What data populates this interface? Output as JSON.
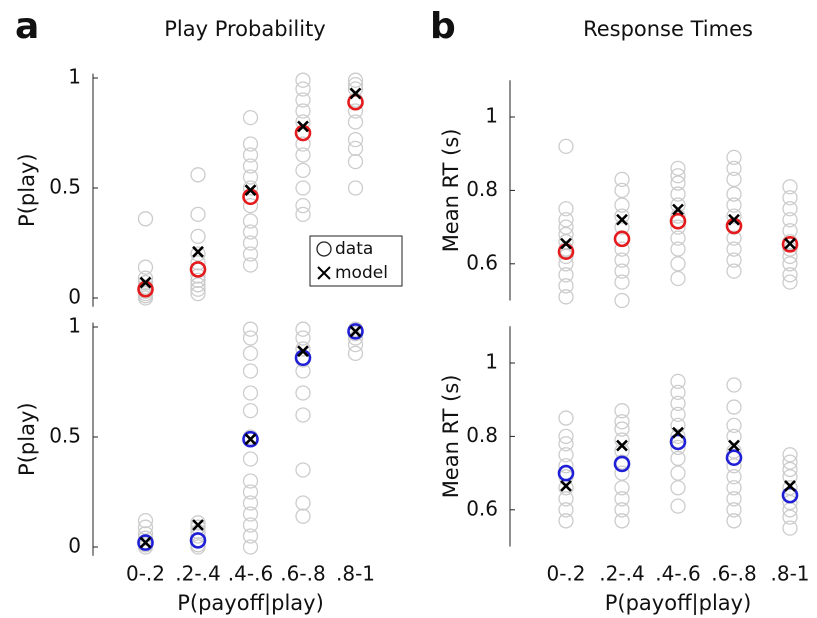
{
  "chart_data": [
    {
      "type": "scatter",
      "panel_label": "a",
      "title": "Play Probability",
      "ylabel": "P(play)",
      "categories": [
        null,
        null,
        null,
        null,
        null
      ],
      "ylim": [
        -0.04,
        1.02
      ],
      "yticks": [
        0,
        0.5,
        1
      ],
      "legend": "right",
      "series": [
        {
          "name": "data",
          "color": "#cccccc",
          "values": [
            [
              0,
              0.01,
              0.02,
              0.03,
              0.05,
              0.07,
              0.09,
              0.14,
              0.36
            ],
            [
              0.02,
              0.04,
              0.06,
              0.08,
              0.1,
              0.13,
              0.16,
              0.2,
              0.28,
              0.38,
              0.56
            ],
            [
              0.15,
              0.2,
              0.25,
              0.3,
              0.35,
              0.42,
              0.5,
              0.55,
              0.6,
              0.65,
              0.7,
              0.82
            ],
            [
              0.38,
              0.42,
              0.5,
              0.58,
              0.65,
              0.7,
              0.75,
              0.8,
              0.85,
              0.9,
              0.95,
              0.99
            ],
            [
              0.5,
              0.62,
              0.68,
              0.72,
              0.8,
              0.85,
              0.9,
              0.95,
              0.97,
              0.99
            ]
          ]
        },
        {
          "color": "#e41a1c",
          "values": [
            0.04,
            0.13,
            0.46,
            0.75,
            0.89
          ]
        },
        {
          "name": "model",
          "color": "#000000",
          "values": [
            0.07,
            0.21,
            0.49,
            0.78,
            0.93
          ]
        }
      ]
    },
    {
      "type": "scatter",
      "panel_label": "b",
      "title": "Response Times",
      "ylabel": "Mean RT (s)",
      "categories": [
        null,
        null,
        null,
        null,
        null
      ],
      "ylim": [
        0.5,
        1.1
      ],
      "yticks": [
        0.6,
        0.8,
        1
      ],
      "series": [
        {
          "color": "#cccccc",
          "values": [
            [
              0.51,
              0.54,
              0.57,
              0.6,
              0.62,
              0.64,
              0.66,
              0.68,
              0.7,
              0.72,
              0.75,
              0.92
            ],
            [
              0.5,
              0.55,
              0.58,
              0.61,
              0.64,
              0.67,
              0.7,
              0.73,
              0.76,
              0.8,
              0.83
            ],
            [
              0.56,
              0.6,
              0.64,
              0.67,
              0.7,
              0.73,
              0.76,
              0.79,
              0.82,
              0.84,
              0.86
            ],
            [
              0.58,
              0.61,
              0.64,
              0.67,
              0.7,
              0.73,
              0.76,
              0.79,
              0.83,
              0.86,
              0.89
            ],
            [
              0.55,
              0.57,
              0.6,
              0.62,
              0.64,
              0.66,
              0.69,
              0.72,
              0.75,
              0.78,
              0.81
            ]
          ]
        },
        {
          "color": "#e41a1c",
          "values": [
            0.633,
            0.668,
            0.716,
            0.703,
            0.653
          ]
        },
        {
          "color": "#000000",
          "values": [
            0.655,
            0.72,
            0.748,
            0.72,
            0.655
          ]
        }
      ]
    },
    {
      "type": "scatter",
      "ylabel": "P(play)",
      "xlabel": "P(payoff|play)",
      "categories": [
        "0-.2",
        ".2-.4",
        ".4-.6",
        ".6-.8",
        ".8-1"
      ],
      "ylim": [
        -0.04,
        1.02
      ],
      "yticks": [
        0,
        0.5,
        1
      ],
      "series": [
        {
          "color": "#cccccc",
          "values": [
            [
              0,
              0.01,
              0.02,
              0.04,
              0.06,
              0.09,
              0.12
            ],
            [
              0,
              0.01,
              0.03,
              0.05,
              0.07,
              0.09,
              0.11
            ],
            [
              0,
              0.05,
              0.1,
              0.15,
              0.2,
              0.25,
              0.3,
              0.4,
              0.5,
              0.62,
              0.7,
              0.8,
              0.88,
              0.95,
              0.99
            ],
            [
              0.14,
              0.2,
              0.35,
              0.6,
              0.7,
              0.8,
              0.85,
              0.9,
              0.95,
              0.99
            ],
            [
              0.88,
              0.92,
              0.95,
              0.97,
              0.99
            ]
          ]
        },
        {
          "color": "#1f1fd6",
          "values": [
            0.02,
            0.03,
            0.49,
            0.86,
            0.98
          ]
        },
        {
          "color": "#000000",
          "values": [
            0.02,
            0.1,
            0.49,
            0.89,
            0.98
          ]
        }
      ]
    },
    {
      "type": "scatter",
      "ylabel": "Mean RT (s)",
      "xlabel": "P(payoff|play)",
      "categories": [
        "0-.2",
        ".2-.4",
        ".4-.6",
        ".6-.8",
        ".8-1"
      ],
      "ylim": [
        0.5,
        1.1
      ],
      "yticks": [
        0.6,
        0.8,
        1
      ],
      "series": [
        {
          "color": "#cccccc",
          "values": [
            [
              0.57,
              0.6,
              0.63,
              0.66,
              0.69,
              0.72,
              0.75,
              0.78,
              0.8,
              0.85
            ],
            [
              0.57,
              0.6,
              0.63,
              0.66,
              0.7,
              0.73,
              0.76,
              0.79,
              0.82,
              0.84,
              0.87
            ],
            [
              0.61,
              0.66,
              0.7,
              0.74,
              0.77,
              0.8,
              0.83,
              0.86,
              0.89,
              0.92,
              0.95
            ],
            [
              0.57,
              0.6,
              0.63,
              0.66,
              0.69,
              0.72,
              0.76,
              0.8,
              0.83,
              0.88,
              0.94
            ],
            [
              0.55,
              0.58,
              0.6,
              0.62,
              0.64,
              0.66,
              0.69,
              0.71,
              0.73,
              0.75
            ]
          ]
        },
        {
          "color": "#1f1fd6",
          "values": [
            0.7,
            0.725,
            0.785,
            0.742,
            0.64
          ]
        },
        {
          "color": "#000000",
          "values": [
            0.665,
            0.775,
            0.81,
            0.775,
            0.665
          ]
        }
      ]
    }
  ]
}
